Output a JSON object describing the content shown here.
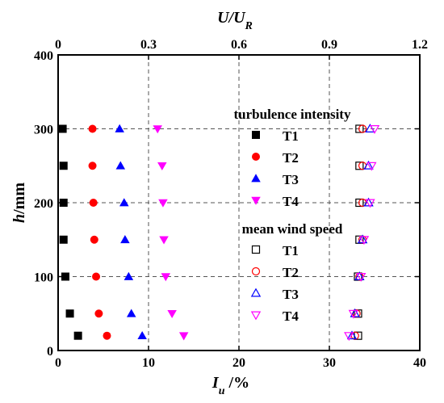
{
  "chart_data": {
    "type": "scatter",
    "xlabel_main": "I",
    "xlabel_main_sub": "u",
    "xlabel_main_unit": " /%",
    "ylabel_italic": "h",
    "ylabel_unit": "/mm",
    "xlabel_top": "U/U",
    "xlabel_top_sub": "R",
    "xlim": [
      0,
      40
    ],
    "xlim_top": [
      0,
      1.2
    ],
    "ylim": [
      0,
      400
    ],
    "x_ticks": [
      "0",
      "10",
      "20",
      "30",
      "40"
    ],
    "x_top_ticks": [
      "0",
      "0.3",
      "0.6",
      "0.9",
      "1.2"
    ],
    "y_ticks": [
      "0",
      "100",
      "200",
      "300",
      "400"
    ],
    "grid": true,
    "legend_group_1_title": "turbulence intensity",
    "legend_group_2_title": "mean wind speed",
    "legend_placement": "inside-right",
    "series": [
      {
        "name": "T1",
        "group": "turbulence intensity",
        "axis": "bottom",
        "marker": "square",
        "filled": true,
        "color": "#000000",
        "points": [
          [
            0.5,
            300
          ],
          [
            0.6,
            250
          ],
          [
            0.6,
            200
          ],
          [
            0.6,
            150
          ],
          [
            0.8,
            100
          ],
          [
            1.3,
            50
          ],
          [
            2.2,
            20
          ]
        ]
      },
      {
        "name": "T2",
        "group": "turbulence intensity",
        "axis": "bottom",
        "marker": "circle",
        "filled": true,
        "color": "#ff0000",
        "points": [
          [
            3.8,
            300
          ],
          [
            3.8,
            250
          ],
          [
            3.9,
            200
          ],
          [
            4.0,
            150
          ],
          [
            4.2,
            100
          ],
          [
            4.5,
            50
          ],
          [
            5.4,
            20
          ]
        ]
      },
      {
        "name": "T3",
        "group": "turbulence intensity",
        "axis": "bottom",
        "marker": "triangle-up",
        "filled": true,
        "color": "#0000ff",
        "points": [
          [
            6.8,
            300
          ],
          [
            6.9,
            250
          ],
          [
            7.3,
            200
          ],
          [
            7.4,
            150
          ],
          [
            7.8,
            100
          ],
          [
            8.1,
            50
          ],
          [
            9.3,
            20
          ]
        ]
      },
      {
        "name": "T4",
        "group": "turbulence intensity",
        "axis": "bottom",
        "marker": "triangle-down",
        "filled": true,
        "color": "#ff00ff",
        "points": [
          [
            11.0,
            300
          ],
          [
            11.5,
            250
          ],
          [
            11.6,
            200
          ],
          [
            11.7,
            150
          ],
          [
            11.9,
            100
          ],
          [
            12.6,
            50
          ],
          [
            13.9,
            20
          ]
        ]
      },
      {
        "name": "T1",
        "group": "mean wind speed",
        "axis": "top",
        "marker": "square",
        "filled": false,
        "color": "#000000",
        "points": [
          [
            1.0,
            300
          ],
          [
            1.0,
            250
          ],
          [
            1.0,
            200
          ],
          [
            1.0,
            150
          ],
          [
            0.995,
            100
          ],
          [
            0.995,
            50
          ],
          [
            0.995,
            20
          ]
        ]
      },
      {
        "name": "T2",
        "group": "mean wind speed",
        "axis": "top",
        "marker": "circle",
        "filled": false,
        "color": "#ff0000",
        "points": [
          [
            1.01,
            300
          ],
          [
            1.01,
            250
          ],
          [
            1.01,
            200
          ],
          [
            1.01,
            150
          ],
          [
            1.0,
            100
          ],
          [
            0.99,
            50
          ],
          [
            0.985,
            20
          ]
        ]
      },
      {
        "name": "T3",
        "group": "mean wind speed",
        "axis": "top",
        "marker": "triangle-up",
        "filled": false,
        "color": "#0000ff",
        "points": [
          [
            1.035,
            300
          ],
          [
            1.03,
            250
          ],
          [
            1.03,
            200
          ],
          [
            1.01,
            150
          ],
          [
            1.0,
            100
          ],
          [
            0.985,
            50
          ],
          [
            0.975,
            20
          ]
        ]
      },
      {
        "name": "T4",
        "group": "mean wind speed",
        "axis": "top",
        "marker": "triangle-down",
        "filled": false,
        "color": "#ff00ff",
        "points": [
          [
            1.05,
            300
          ],
          [
            1.04,
            250
          ],
          [
            1.035,
            200
          ],
          [
            1.015,
            150
          ],
          [
            1.005,
            100
          ],
          [
            0.98,
            50
          ],
          [
            0.965,
            20
          ]
        ]
      }
    ]
  }
}
